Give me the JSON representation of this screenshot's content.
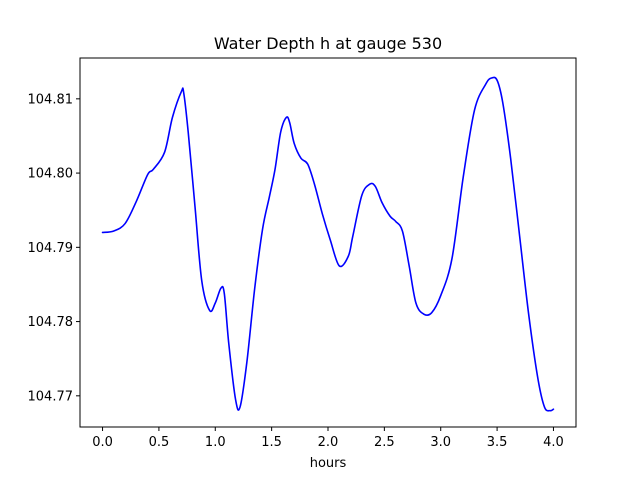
{
  "chart_data": {
    "type": "line",
    "title": "Water Depth h at gauge 530",
    "xlabel": "hours",
    "ylabel": "",
    "xlim": [
      -0.2,
      4.2
    ],
    "ylim": [
      104.7658,
      104.8155
    ],
    "xticks": [
      0.0,
      0.5,
      1.0,
      1.5,
      2.0,
      2.5,
      3.0,
      3.5,
      4.0
    ],
    "xtick_labels": [
      "0.0",
      "0.5",
      "1.0",
      "1.5",
      "2.0",
      "2.5",
      "3.0",
      "3.5",
      "4.0"
    ],
    "yticks": [
      104.77,
      104.78,
      104.79,
      104.8,
      104.81
    ],
    "ytick_labels": [
      "104.77",
      "104.78",
      "104.79",
      "104.80",
      "104.81"
    ],
    "grid": false,
    "color": "#0000ff",
    "series": [
      {
        "name": "",
        "x": [
          0.0,
          0.1,
          0.2,
          0.3,
          0.4,
          0.45,
          0.55,
          0.62,
          0.7,
          0.72,
          0.76,
          0.82,
          0.88,
          0.95,
          1.0,
          1.05,
          1.08,
          1.12,
          1.18,
          1.22,
          1.28,
          1.35,
          1.42,
          1.48,
          1.53,
          1.58,
          1.63,
          1.66,
          1.7,
          1.76,
          1.82,
          1.88,
          1.95,
          2.02,
          2.1,
          2.18,
          2.22,
          2.3,
          2.37,
          2.42,
          2.48,
          2.55,
          2.6,
          2.66,
          2.72,
          2.78,
          2.85,
          2.92,
          3.0,
          3.1,
          3.2,
          3.3,
          3.4,
          3.45,
          3.5,
          3.55,
          3.62,
          3.7,
          3.78,
          3.86,
          3.92,
          3.97,
          4.0
        ],
        "y": [
          104.792,
          104.7922,
          104.7932,
          104.7962,
          104.7998,
          104.8005,
          104.8028,
          104.8075,
          104.811,
          104.8108,
          104.8055,
          104.7955,
          104.7855,
          104.7815,
          104.7825,
          104.7845,
          104.7838,
          104.777,
          104.7695,
          104.7685,
          104.7745,
          104.7845,
          104.7925,
          104.7968,
          104.8005,
          104.8055,
          104.8075,
          104.8068,
          104.804,
          104.802,
          104.8012,
          104.7985,
          104.7945,
          104.791,
          104.7875,
          104.7888,
          104.7915,
          104.797,
          104.7985,
          104.7982,
          104.796,
          104.7942,
          104.7935,
          104.7922,
          104.7875,
          104.7825,
          104.781,
          104.7812,
          104.7835,
          104.7885,
          104.7995,
          104.8085,
          104.812,
          104.8128,
          104.8125,
          104.8095,
          104.802,
          104.7915,
          104.781,
          104.7725,
          104.7685,
          104.768,
          104.7682
        ]
      }
    ]
  }
}
